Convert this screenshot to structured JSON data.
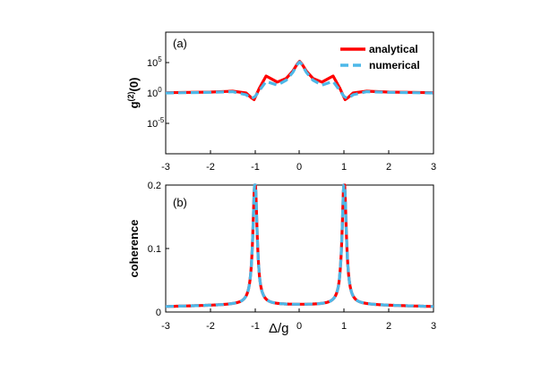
{
  "chart_data": [
    {
      "type": "line",
      "panel_label": "(a)",
      "ylabel_base": "g",
      "ylabel_sup": "(2)",
      "ylabel_tail": "(0)",
      "yscale": "log",
      "ylim_exp": [
        -10,
        10
      ],
      "xlim": [
        -3,
        3
      ],
      "xticks": [
        "-3",
        "-2",
        "-1",
        "0",
        "1",
        "2",
        "3"
      ],
      "yticks": [
        {
          "base": "10",
          "exp": "5",
          "value_exp": 5
        },
        {
          "base": "10",
          "exp": "0",
          "value_exp": 0
        },
        {
          "base": "10",
          "exp": "-5",
          "value_exp": -5
        }
      ],
      "legend": [
        "analytical",
        "numerical"
      ],
      "series": [
        {
          "name": "analytical",
          "color": "#ff0000",
          "x": [
            -3,
            -2,
            -1.5,
            -1.2,
            -1.08,
            -1.02,
            -0.9,
            -0.75,
            -0.5,
            -0.3,
            -0.15,
            -0.05,
            0,
            0.05,
            0.15,
            0.3,
            0.5,
            0.75,
            0.9,
            1.02,
            1.08,
            1.2,
            1.5,
            2,
            3
          ],
          "y_exp": [
            0.05,
            0.15,
            0.3,
            0.0,
            -0.8,
            -1.1,
            0.8,
            2.8,
            1.8,
            2.4,
            3.6,
            4.8,
            5.2,
            4.8,
            3.6,
            2.4,
            1.8,
            2.8,
            0.8,
            -1.1,
            -0.8,
            0.0,
            0.3,
            0.15,
            0.05
          ]
        },
        {
          "name": "numerical",
          "color": "#4db8e8",
          "x": [
            -3,
            -2,
            -1.5,
            -1.2,
            -1.08,
            -1.0,
            -0.9,
            -0.75,
            -0.5,
            -0.3,
            -0.15,
            -0.05,
            0,
            0.05,
            0.15,
            0.3,
            0.5,
            0.75,
            0.9,
            1.0,
            1.08,
            1.2,
            1.5,
            2,
            3
          ],
          "y_exp": [
            0.0,
            0.1,
            0.2,
            -0.3,
            -0.9,
            -0.6,
            0.4,
            1.9,
            1.3,
            2.1,
            3.4,
            4.7,
            5.1,
            4.7,
            3.4,
            2.1,
            1.3,
            1.9,
            0.4,
            -0.6,
            -0.9,
            -0.3,
            0.2,
            0.1,
            0.0
          ]
        }
      ]
    },
    {
      "type": "line",
      "panel_label": "(b)",
      "ylabel": "coherence",
      "xlabel_main": "Δ/g",
      "xlabel_zero": "0",
      "xlim": [
        -3,
        3
      ],
      "ylim": [
        0,
        0.2
      ],
      "xticks": [
        "-3",
        "-2",
        "-1",
        "1",
        "2",
        "3"
      ],
      "yticks": [
        "0",
        "0.1",
        "0.2"
      ],
      "peaks": [
        -1,
        1
      ],
      "peak_value": 0.2,
      "center_value": 0.02,
      "edge_value": 0.003,
      "series": [
        {
          "name": "analytical",
          "color": "#ff0000"
        },
        {
          "name": "numerical",
          "color": "#4db8e8"
        }
      ]
    }
  ]
}
